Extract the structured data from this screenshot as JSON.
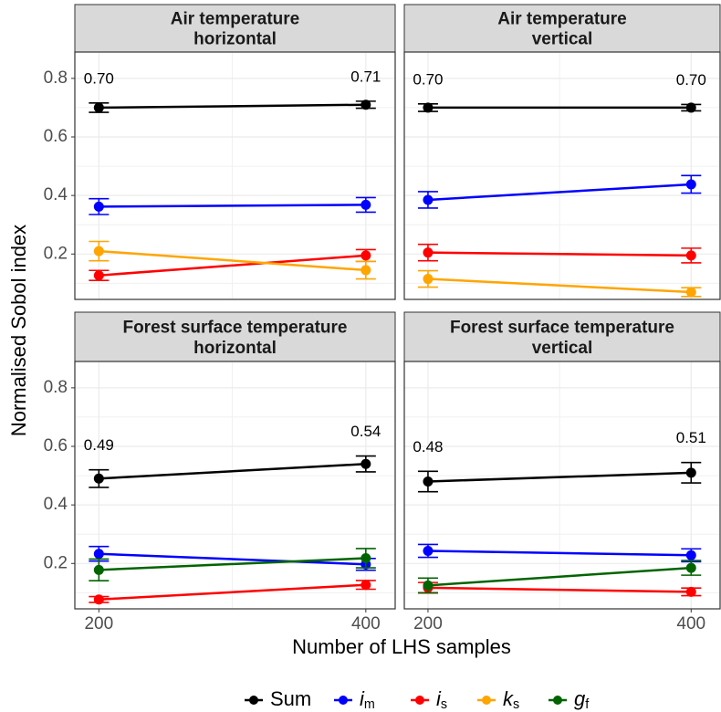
{
  "xlabel": "Number of LHS samples",
  "ylabel": "Normalised Sobol index",
  "chart_data": [
    {
      "type": "line",
      "title": "Air temperature",
      "subtitle": "horizontal",
      "x": [
        200,
        400
      ],
      "xlim": [
        182,
        422
      ],
      "xticks": [
        200,
        400
      ],
      "ylim": [
        0.045,
        0.89
      ],
      "yticks": [
        0.2,
        0.4,
        0.6,
        0.8
      ],
      "grid": true,
      "series": [
        {
          "name": "Sum",
          "color": "#000000",
          "values": [
            0.7,
            0.71
          ],
          "value_labels": [
            "0.70",
            "0.71"
          ],
          "errors": [
            0.016,
            0.012
          ]
        },
        {
          "name": "i_m",
          "color": "#0000ff",
          "values": [
            0.362,
            0.368
          ],
          "errors": [
            0.027,
            0.025
          ]
        },
        {
          "name": "i_s",
          "color": "#ff0000",
          "values": [
            0.127,
            0.195
          ],
          "errors": [
            0.017,
            0.02
          ]
        },
        {
          "name": "k_s",
          "color": "#ffa500",
          "values": [
            0.21,
            0.145
          ],
          "errors": [
            0.033,
            0.03
          ]
        }
      ]
    },
    {
      "type": "line",
      "title": "Air temperature",
      "subtitle": "vertical",
      "x": [
        200,
        400
      ],
      "xlim": [
        182,
        422
      ],
      "xticks": [
        200,
        400
      ],
      "ylim": [
        0.045,
        0.89
      ],
      "yticks": [
        0.2,
        0.4,
        0.6,
        0.8
      ],
      "grid": true,
      "series": [
        {
          "name": "Sum",
          "color": "#000000",
          "values": [
            0.7,
            0.7
          ],
          "value_labels": [
            "0.70",
            "0.70"
          ],
          "errors": [
            0.013,
            0.011
          ]
        },
        {
          "name": "i_m",
          "color": "#0000ff",
          "values": [
            0.385,
            0.438
          ],
          "errors": [
            0.028,
            0.03
          ]
        },
        {
          "name": "i_s",
          "color": "#ff0000",
          "values": [
            0.205,
            0.195
          ],
          "errors": [
            0.028,
            0.025
          ]
        },
        {
          "name": "k_s",
          "color": "#ffa500",
          "values": [
            0.115,
            0.07
          ],
          "errors": [
            0.028,
            0.015
          ]
        }
      ]
    },
    {
      "type": "line",
      "title": "Forest surface temperature",
      "subtitle": "horizontal",
      "x": [
        200,
        400
      ],
      "xlim": [
        182,
        422
      ],
      "xticks": [
        200,
        400
      ],
      "ylim": [
        0.045,
        0.89
      ],
      "yticks": [
        0.2,
        0.4,
        0.6,
        0.8
      ],
      "grid": true,
      "series": [
        {
          "name": "Sum",
          "color": "#000000",
          "values": [
            0.49,
            0.54
          ],
          "value_labels": [
            "0.49",
            "0.54"
          ],
          "errors": [
            0.03,
            0.027
          ]
        },
        {
          "name": "i_m",
          "color": "#0000ff",
          "values": [
            0.233,
            0.197
          ],
          "errors": [
            0.025,
            0.02
          ]
        },
        {
          "name": "i_s",
          "color": "#ff0000",
          "values": [
            0.077,
            0.127
          ],
          "errors": [
            0.01,
            0.015
          ]
        },
        {
          "name": "g_f",
          "color": "#006400",
          "values": [
            0.178,
            0.218
          ],
          "errors": [
            0.037,
            0.033
          ]
        }
      ]
    },
    {
      "type": "line",
      "title": "Forest surface temperature",
      "subtitle": "vertical",
      "x": [
        200,
        400
      ],
      "xlim": [
        182,
        422
      ],
      "xticks": [
        200,
        400
      ],
      "ylim": [
        0.045,
        0.89
      ],
      "yticks": [
        0.2,
        0.4,
        0.6,
        0.8
      ],
      "grid": true,
      "series": [
        {
          "name": "Sum",
          "color": "#000000",
          "values": [
            0.48,
            0.51
          ],
          "value_labels": [
            "0.48",
            "0.51"
          ],
          "errors": [
            0.035,
            0.035
          ]
        },
        {
          "name": "i_m",
          "color": "#0000ff",
          "values": [
            0.243,
            0.228
          ],
          "errors": [
            0.022,
            0.022
          ]
        },
        {
          "name": "i_s",
          "color": "#ff0000",
          "values": [
            0.117,
            0.103
          ],
          "errors": [
            0.018,
            0.013
          ]
        },
        {
          "name": "g_f",
          "color": "#006400",
          "values": [
            0.125,
            0.185
          ],
          "errors": [
            0.025,
            0.025
          ]
        }
      ]
    }
  ]
}
